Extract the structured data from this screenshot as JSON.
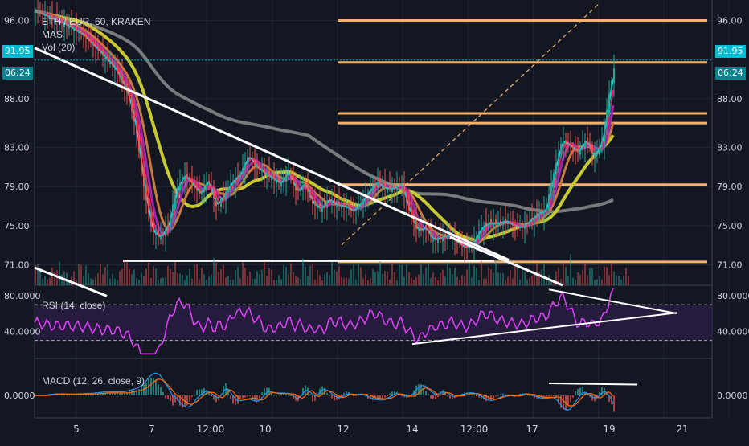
{
  "legend": {
    "symbol": "ETH / EUR, 60, KRAKEN",
    "mas": "MAS",
    "vol": "Vol (20)",
    "rsi": "RSI (14, close)",
    "macd": "MACD (12, 26, close, 9)"
  },
  "price_tags": {
    "left_price": "91.95",
    "left_timer": "06:24",
    "right_price": "91.95",
    "right_timer": "06:24"
  },
  "colors": {
    "background": "#131722",
    "grid": "#1f2636",
    "level_lines": "#f6b26b",
    "trendline": "#ffffff",
    "rsi_line": "#e040fb",
    "rsi_band": "#2a1e45",
    "ma_yellow": "#c8c832",
    "ma_gray": "#8c8c8c",
    "candle_up": "#26a69a",
    "candle_down": "#ef5350",
    "macd_line": "#2196f3",
    "signal_line": "#ff6d00",
    "price_tag": "#00bcd4"
  },
  "chart_data": {
    "type": "candlestick",
    "symbol": "ETH / EUR",
    "interval": "60",
    "exchange": "KRAKEN",
    "x_ticks": [
      "5",
      "7",
      "12:00",
      "10",
      "12",
      "14",
      "12:00",
      "17",
      "19",
      "21"
    ],
    "price_axis": {
      "ticks": [
        "96.00",
        "88.00",
        "83.00",
        "79.00",
        "75.00",
        "71.00"
      ],
      "tick_values": [
        96,
        88,
        83,
        79,
        75,
        71
      ],
      "range": [
        68.9,
        98.1
      ],
      "current_price": 91.95
    },
    "approx_close_path": [
      [
        0,
        97.0
      ],
      [
        20,
        96.2
      ],
      [
        40,
        95.5
      ],
      [
        60,
        94.5
      ],
      [
        80,
        92.8
      ],
      [
        100,
        91.0
      ],
      [
        115,
        88.5
      ],
      [
        125,
        85.0
      ],
      [
        135,
        79.0
      ],
      [
        145,
        74.5
      ],
      [
        155,
        73.8
      ],
      [
        165,
        75.0
      ],
      [
        175,
        78.5
      ],
      [
        185,
        80.2
      ],
      [
        195,
        79.3
      ],
      [
        205,
        78.2
      ],
      [
        215,
        79.6
      ],
      [
        225,
        77.0
      ],
      [
        235,
        78.2
      ],
      [
        245,
        79.5
      ],
      [
        255,
        80.3
      ],
      [
        265,
        82.2
      ],
      [
        275,
        81.0
      ],
      [
        285,
        80.4
      ],
      [
        295,
        79.8
      ],
      [
        305,
        79.3
      ],
      [
        315,
        80.6
      ],
      [
        325,
        78.4
      ],
      [
        335,
        79.3
      ],
      [
        345,
        77.3
      ],
      [
        355,
        76.7
      ],
      [
        365,
        77.7
      ],
      [
        375,
        77.1
      ],
      [
        385,
        77.0
      ],
      [
        395,
        76.5
      ],
      [
        405,
        77.3
      ],
      [
        415,
        78.5
      ],
      [
        425,
        79.5
      ],
      [
        435,
        78.8
      ],
      [
        445,
        78.8
      ],
      [
        455,
        79.3
      ],
      [
        465,
        76.6
      ],
      [
        475,
        74.5
      ],
      [
        485,
        74.8
      ],
      [
        495,
        73.5
      ],
      [
        505,
        73.8
      ],
      [
        515,
        74.0
      ],
      [
        525,
        73.3
      ],
      [
        535,
        72.7
      ],
      [
        545,
        73.3
      ],
      [
        555,
        74.8
      ],
      [
        565,
        75.3
      ],
      [
        575,
        75.2
      ],
      [
        585,
        75.5
      ],
      [
        595,
        75.0
      ],
      [
        605,
        74.8
      ],
      [
        615,
        75.5
      ],
      [
        625,
        76.2
      ],
      [
        635,
        76.6
      ],
      [
        645,
        80.4
      ],
      [
        655,
        83.7
      ],
      [
        665,
        83.2
      ],
      [
        675,
        82.5
      ],
      [
        685,
        83.8
      ],
      [
        695,
        82.0
      ],
      [
        705,
        83.6
      ],
      [
        715,
        89.0
      ],
      [
        722,
        91.95
      ]
    ],
    "horizontal_levels": [
      96.0,
      91.7,
      86.5,
      85.5,
      79.2,
      71.3
    ],
    "support_line_price": 71.4,
    "trendlines": [
      {
        "from": [
          0,
          93.2
        ],
        "to": [
          590,
          71.5
        ]
      },
      {
        "from": [
          0,
          70.7
        ],
        "to": [
          90,
          67.8
        ]
      }
    ],
    "rsi": {
      "label": "RSI (14, close)",
      "ticks": [
        "80.0000",
        "40.0000"
      ],
      "upper": 70,
      "lower": 30,
      "current": 72,
      "triangle_upper": {
        "from": [
          640,
          87
        ],
        "to": [
          800,
          60
        ]
      },
      "triangle_lower": {
        "from": [
          470,
          26
        ],
        "to": [
          800,
          61
        ]
      }
    },
    "macd": {
      "label": "MACD (12, 26, close, 9)",
      "ticks": [
        "0.0000"
      ],
      "trendline": {
        "from": [
          640,
          0.5
        ],
        "to": [
          750,
          0.45
        ]
      }
    },
    "volume": {
      "label": "Vol (20)"
    }
  }
}
